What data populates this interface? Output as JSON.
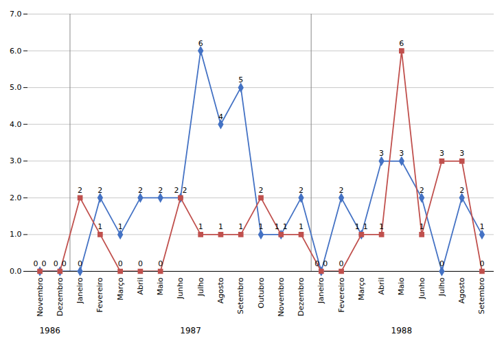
{
  "chart_data": {
    "type": "line",
    "categories": [
      "Novembro",
      "Dezembro",
      "Janeiro",
      "Fevereiro",
      "Março",
      "Abril",
      "Maio",
      "Junho",
      "Julho",
      "Agosto",
      "Setembro",
      "Outubro",
      "Novembro",
      "Dezembro",
      "Janeiro",
      "Fevereiro",
      "Março",
      "Abril",
      "Maio",
      "Junho",
      "Julho",
      "Agosto",
      "Setembro"
    ],
    "series": [
      {
        "color": "#4472C4",
        "marker": "diamond",
        "values": [
          0,
          0,
          0,
          2,
          1,
          2,
          2,
          2,
          6,
          4,
          5,
          1,
          1,
          2,
          0,
          2,
          1,
          3,
          3,
          2,
          0,
          2,
          1
        ]
      },
      {
        "color": "#C0504D",
        "marker": "square",
        "values": [
          0,
          0,
          2,
          1,
          0,
          0,
          0,
          2,
          1,
          1,
          1,
          2,
          1,
          1,
          0,
          0,
          1,
          1,
          6,
          1,
          3,
          3,
          0
        ]
      }
    ],
    "annotations": [
      {
        "text": "1986",
        "start": 0,
        "end": 1
      },
      {
        "text": "1987",
        "start": 2,
        "end": 13
      },
      {
        "text": "1988",
        "start": 14,
        "end": 22
      }
    ],
    "ylim": [
      0,
      7
    ],
    "yticks": [
      0,
      1,
      2,
      3,
      4,
      5,
      6,
      7
    ],
    "grid": true,
    "data_labels": true
  }
}
